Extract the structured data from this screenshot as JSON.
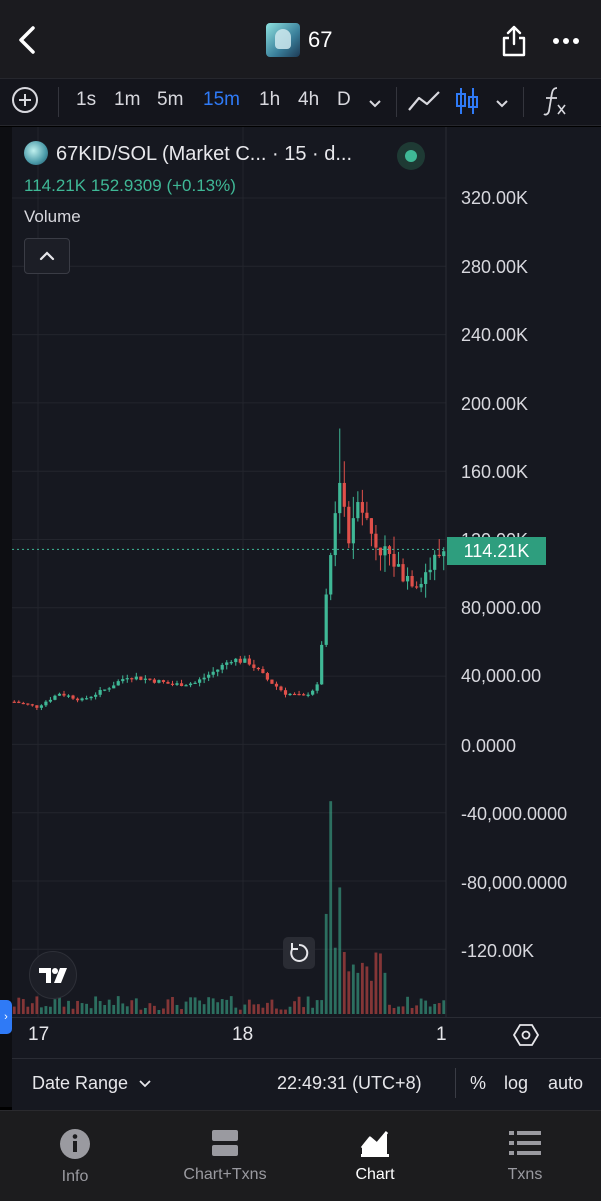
{
  "header": {
    "title": "67",
    "back_icon": "chevron-left-icon",
    "share_icon": "share-icon",
    "more_icon": "ellipsis-icon"
  },
  "toolbar": {
    "intervals": [
      "1s",
      "1m",
      "5m",
      "15m",
      "1h",
      "4h",
      "D"
    ],
    "active_interval": "15m",
    "accent": "#2f7af6"
  },
  "chart": {
    "pair_title": "67KID/SOL (Market C... · 15 · d...",
    "ohlc_value": "114.21K",
    "ohlc_price": "152.9309",
    "ohlc_change": "(+0.13%)",
    "volume_label": "Volume",
    "price_tag": "114.21K",
    "up_color": "#3fb896",
    "down_color": "#e0504a",
    "y_labels": [
      "320.00K",
      "280.00K",
      "240.00K",
      "200.00K",
      "160.00K",
      "120.00K",
      "80,000.00",
      "40,000.00",
      "0.0000",
      "-40,000.0000",
      "-80,000.0000",
      "-120.00K"
    ],
    "x_labels": [
      "17",
      "18",
      "1"
    ]
  },
  "controls": {
    "date_range": "Date Range",
    "clock": "22:49:31 (UTC+8)",
    "percent": "%",
    "log": "log",
    "auto": "auto"
  },
  "tabs": [
    {
      "label": "Info",
      "icon": "info-icon"
    },
    {
      "label": "Chart+Txns",
      "icon": "split-view-icon"
    },
    {
      "label": "Chart",
      "icon": "area-chart-icon"
    },
    {
      "label": "Txns",
      "icon": "list-icon"
    }
  ],
  "active_tab": "Chart",
  "chart_data": {
    "type": "candlestick",
    "title": "67KID/SOL (Market C... · 15 · d...",
    "ylim": [
      -140000,
      340000
    ],
    "y_ticks": [
      320000,
      280000,
      240000,
      200000,
      160000,
      120000,
      80000,
      40000,
      0,
      -40000,
      -80000,
      -120000
    ],
    "x_labels": [
      "17",
      "18",
      "1"
    ],
    "last_value": 114210,
    "series": [
      {
        "name": "Market Cap",
        "approx_path": [
          [
            0,
            25000
          ],
          [
            5,
            22000
          ],
          [
            10,
            30000
          ],
          [
            15,
            26000
          ],
          [
            20,
            32000
          ],
          [
            25,
            40000
          ],
          [
            30,
            38000
          ],
          [
            35,
            35000
          ],
          [
            40,
            36000
          ],
          [
            45,
            44000
          ],
          [
            48,
            50000
          ],
          [
            52,
            48000
          ],
          [
            56,
            38000
          ],
          [
            60,
            30000
          ],
          [
            64,
            28000
          ],
          [
            67,
            34000
          ],
          [
            70,
            110000
          ],
          [
            72,
            160000
          ],
          [
            74,
            120000
          ],
          [
            76,
            150000
          ],
          [
            78,
            130000
          ],
          [
            80,
            118000
          ],
          [
            83,
            110000
          ],
          [
            86,
            100000
          ],
          [
            89,
            96000
          ],
          [
            92,
            104000
          ],
          [
            95,
            114210
          ]
        ]
      }
    ],
    "volume_peak_index": 70,
    "grid": true
  }
}
